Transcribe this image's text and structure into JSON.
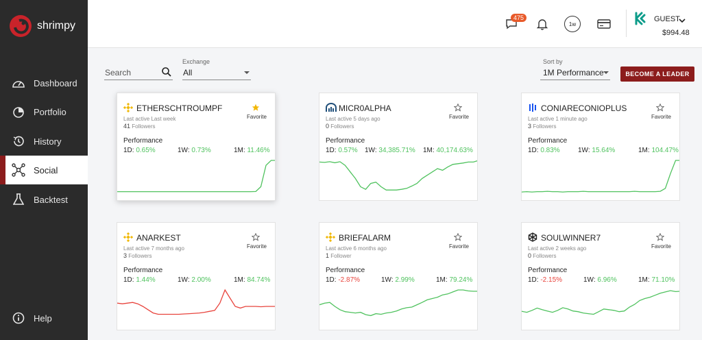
{
  "app": {
    "name": "shrimpy"
  },
  "nav": [
    {
      "label": "Dashboard",
      "icon": "dashboard-icon"
    },
    {
      "label": "Portfolio",
      "icon": "pie-chart-icon"
    },
    {
      "label": "History",
      "icon": "history-icon"
    },
    {
      "label": "Social",
      "icon": "social-network-icon",
      "active": true
    },
    {
      "label": "Backtest",
      "icon": "flask-icon"
    },
    {
      "label": "Help",
      "icon": "info-icon"
    }
  ],
  "topbar": {
    "notification_count": "475",
    "period_label": "1w",
    "user": "GUEST",
    "balance": "$994.48"
  },
  "filters": {
    "search_label": "Search",
    "exchange_label": "Exchange",
    "exchange_value": "All",
    "sort_label": "Sort by",
    "sort_value": "1M Performance",
    "leader_button": "BECOME A LEADER"
  },
  "colors": {
    "accent": "#8c1c1c",
    "positive": "#4fc25e",
    "negative": "#e8433c"
  },
  "cards": [
    {
      "name": "ETHERSCHTROUMPF",
      "exchange_icon": "binance-icon",
      "active": "Last active Last week",
      "followers_count": "41",
      "followers_label": "Followers",
      "favorite_label": "Favorite",
      "favorited": true,
      "perf_label": "Performance",
      "d1": "0.65%",
      "w1": "0.73%",
      "m1": "11.46%",
      "d1_sign": "pos",
      "w1_sign": "pos",
      "m1_sign": "pos",
      "spark": [
        0.5,
        0.5,
        0.5,
        0.5,
        0.5,
        0.5,
        0.5,
        0.5,
        0.5,
        0.5,
        0.5,
        0.5,
        0.5,
        0.5,
        0.5,
        0.5,
        0.5,
        0.5,
        0.5,
        0.5,
        0.5,
        0.5,
        0.5,
        0.5,
        0.5,
        0.5,
        0.5,
        0.55,
        2.0,
        8.5,
        10.0,
        10.0
      ],
      "trend": "pos"
    },
    {
      "name": "MICR0ALPHA",
      "exchange_icon": "bitmex-icon",
      "active": "Last active 5 days ago",
      "followers_count": "0",
      "followers_label": "Followers",
      "favorite_label": "Favorite",
      "favorited": false,
      "perf_label": "Performance",
      "d1": "0.57%",
      "w1": "34,385.71%",
      "m1": "40,174.63%",
      "d1_sign": "pos",
      "w1_sign": "pos",
      "m1_sign": "pos",
      "spark": [
        9.5,
        9.4,
        9.6,
        9.3,
        9.6,
        8.5,
        6.5,
        4.5,
        2.0,
        1.2,
        3.0,
        3.4,
        2.0,
        1.0,
        1.0,
        1.0,
        1.2,
        1.5,
        2.2,
        3.0,
        4.5,
        5.5,
        6.5,
        7.5,
        7.0,
        8.0,
        8.8,
        9.0,
        9.2,
        9.5,
        9.5,
        10.0
      ],
      "trend": "pos"
    },
    {
      "name": "CONIARECONIOPLUS",
      "exchange_icon": "coinbase-pro-icon",
      "active": "Last active 1 minute ago",
      "followers_count": "3",
      "followers_label": "Followers",
      "favorite_label": "Favorite",
      "favorited": false,
      "perf_label": "Performance",
      "d1": "0.83%",
      "w1": "15.64%",
      "m1": "104.47%",
      "d1_sign": "pos",
      "w1_sign": "pos",
      "m1_sign": "pos",
      "spark": [
        0.4,
        0.5,
        0.4,
        0.5,
        0.5,
        0.6,
        0.5,
        0.5,
        0.4,
        0.5,
        0.5,
        0.5,
        0.6,
        0.5,
        0.5,
        0.5,
        0.5,
        0.5,
        0.5,
        0.5,
        0.5,
        0.5,
        0.6,
        0.5,
        0.5,
        0.5,
        0.5,
        0.6,
        1.5,
        6.0,
        10.0,
        10.0
      ],
      "trend": "pos"
    },
    {
      "name": "ANARKEST",
      "exchange_icon": "binance-icon",
      "active": "Last active 7 months ago",
      "followers_count": "3",
      "followers_label": "Followers",
      "favorite_label": "Favorite",
      "favorited": false,
      "perf_label": "Performance",
      "d1": "1.44%",
      "w1": "2.00%",
      "m1": "84.74%",
      "d1_sign": "pos",
      "w1_sign": "pos",
      "m1_sign": "pos",
      "spark": [
        6.0,
        5.8,
        6.0,
        6.2,
        5.8,
        5.0,
        4.0,
        3.0,
        2.6,
        2.6,
        2.6,
        2.6,
        2.6,
        2.7,
        2.8,
        2.9,
        3.0,
        3.2,
        3.5,
        3.8,
        6.0,
        10.0,
        7.5,
        5.0,
        4.5,
        5.0,
        5.0,
        5.0,
        4.9,
        5.0,
        5.0,
        5.0
      ],
      "trend": "neg"
    },
    {
      "name": "BRIEFALARM",
      "exchange_icon": "binance-icon",
      "active": "Last active 6 months ago",
      "followers_count": "1",
      "followers_label": "Follower",
      "favorite_label": "Favorite",
      "favorited": false,
      "perf_label": "Performance",
      "d1": "-2.87%",
      "w1": "2.99%",
      "m1": "79.24%",
      "d1_sign": "neg",
      "w1_sign": "pos",
      "m1_sign": "pos",
      "spark": [
        5.5,
        6.0,
        6.2,
        5.0,
        4.0,
        3.4,
        3.2,
        3.0,
        3.2,
        2.5,
        2.2,
        2.8,
        2.6,
        3.0,
        3.2,
        3.6,
        4.2,
        4.6,
        4.8,
        5.5,
        6.2,
        7.0,
        7.4,
        7.8,
        8.5,
        8.8,
        9.4,
        10.0,
        10.0,
        9.7,
        9.6,
        9.6
      ],
      "trend": "pos"
    },
    {
      "name": "SOULWINNER7",
      "exchange_icon": "bittrex-icon",
      "active": "Last active 2 weeks ago",
      "followers_count": "0",
      "followers_label": "Followers",
      "favorite_label": "Favorite",
      "favorited": false,
      "perf_label": "Performance",
      "d1": "-2.15%",
      "w1": "6.96%",
      "m1": "71.10%",
      "d1_sign": "neg",
      "w1_sign": "pos",
      "m1_sign": "pos",
      "spark": [
        3.5,
        3.2,
        3.8,
        4.5,
        4.0,
        3.6,
        3.2,
        3.8,
        4.6,
        4.2,
        3.6,
        3.4,
        3.0,
        2.8,
        2.6,
        3.4,
        4.2,
        4.0,
        3.8,
        3.4,
        3.6,
        4.8,
        5.6,
        6.8,
        7.4,
        7.8,
        8.4,
        9.0,
        9.4,
        9.8,
        9.5,
        9.6
      ],
      "trend": "pos"
    }
  ]
}
